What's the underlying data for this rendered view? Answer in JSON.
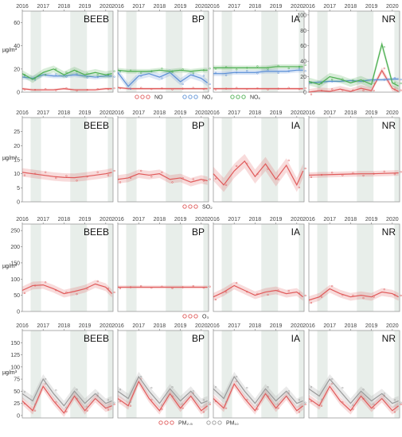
{
  "chart_data": [
    {
      "type": "line",
      "years": [
        "2016",
        "2017",
        "2018",
        "2019",
        "2020"
      ],
      "ylabel": "µg/m³",
      "ylim": [
        0,
        70
      ],
      "yticks": [
        0,
        20,
        40,
        60
      ],
      "panels": [
        {
          "title": "BEEB",
          "ylim": [
            0,
            70
          ],
          "yticks": [
            0,
            20,
            40,
            60
          ]
        },
        {
          "title": "BP",
          "ylim": [
            0,
            70
          ],
          "yticks": [
            0,
            20,
            40,
            60
          ]
        },
        {
          "title": "IA",
          "ylim": [
            0,
            70
          ],
          "yticks": [
            0,
            20,
            40,
            60
          ]
        },
        {
          "title": "NR",
          "ylim": [
            0,
            105
          ],
          "yticks": [
            0,
            20,
            40,
            60,
            80,
            100
          ]
        }
      ],
      "legend": [
        {
          "name": "NO",
          "color": "#e05a5a"
        },
        {
          "name": "NO₂",
          "color": "#5b8fd6"
        },
        {
          "name": "NOₓ",
          "color": "#4caf50"
        }
      ],
      "x": [
        2016.0,
        2016.5,
        2017.0,
        2017.5,
        2018.0,
        2018.5,
        2019.0,
        2019.5,
        2020.0,
        2020.3
      ],
      "series": [
        {
          "panel": "BEEB",
          "name": "NO",
          "values": [
            3,
            2,
            2,
            2,
            3,
            2,
            2,
            2,
            3,
            3
          ],
          "band": 1
        },
        {
          "panel": "BEEB",
          "name": "NO₂",
          "values": [
            13,
            12,
            15,
            14,
            14,
            15,
            14,
            13,
            14,
            14
          ],
          "band": 2
        },
        {
          "panel": "BEEB",
          "name": "NOₓ",
          "values": [
            16,
            11,
            17,
            20,
            15,
            19,
            15,
            17,
            15,
            16
          ],
          "band": 3
        },
        {
          "panel": "BP",
          "name": "NO",
          "values": [
            4,
            3,
            3,
            3,
            3,
            3,
            3,
            3,
            3,
            3
          ],
          "band": 1
        },
        {
          "panel": "BP",
          "name": "NO₂",
          "values": [
            17,
            5,
            14,
            16,
            13,
            17,
            9,
            15,
            12,
            8
          ],
          "band": 3
        },
        {
          "panel": "BP",
          "name": "NOₓ",
          "values": [
            19,
            18,
            18,
            18,
            19,
            18,
            19,
            18,
            19,
            19
          ],
          "band": 2
        },
        {
          "panel": "IA",
          "name": "NO",
          "values": [
            3,
            3,
            3,
            3,
            3,
            3,
            3,
            3,
            3,
            3
          ],
          "band": 1
        },
        {
          "panel": "IA",
          "name": "NO₂",
          "values": [
            16,
            16,
            17,
            17,
            17,
            18,
            18,
            18,
            19,
            19
          ],
          "band": 2
        },
        {
          "panel": "IA",
          "name": "NOₓ",
          "values": [
            21,
            21,
            21,
            21,
            21,
            21,
            22,
            22,
            22,
            22
          ],
          "band": 2
        },
        {
          "panel": "NR",
          "name": "NO",
          "values": [
            0,
            2,
            1,
            4,
            1,
            5,
            2,
            28,
            5,
            1
          ],
          "band": 4
        },
        {
          "panel": "NR",
          "name": "NO₂",
          "values": [
            12,
            13,
            14,
            14,
            15,
            14,
            16,
            16,
            17,
            17
          ],
          "band": 2
        },
        {
          "panel": "NR",
          "name": "NOₓ",
          "values": [
            14,
            10,
            20,
            17,
            12,
            16,
            10,
            62,
            12,
            8
          ],
          "band": 5
        }
      ]
    },
    {
      "type": "line",
      "years": [
        "2016",
        "2017",
        "2018",
        "2019",
        "2020"
      ],
      "ylabel": "µg/m³",
      "ylim": [
        0,
        30
      ],
      "yticks": [
        0,
        5,
        10,
        15,
        20,
        25
      ],
      "panels": [
        {
          "title": "BEEB",
          "ylim": [
            0,
            30
          ],
          "yticks": [
            0,
            5,
            10,
            15,
            20,
            25
          ]
        },
        {
          "title": "BP",
          "ylim": [
            0,
            30
          ],
          "yticks": [
            0,
            5,
            10,
            15,
            20,
            25
          ]
        },
        {
          "title": "IA",
          "ylim": [
            0,
            30
          ],
          "yticks": [
            0,
            5,
            10,
            15,
            20,
            25
          ]
        },
        {
          "title": "NR",
          "ylim": [
            0,
            30
          ],
          "yticks": [
            0,
            5,
            10,
            15,
            20,
            25
          ]
        }
      ],
      "legend": [
        {
          "name": "SO₂",
          "color": "#e05a5a"
        }
      ],
      "x": [
        2016.0,
        2016.5,
        2017.0,
        2017.5,
        2018.0,
        2018.5,
        2019.0,
        2019.5,
        2020.0,
        2020.3
      ],
      "series": [
        {
          "panel": "BEEB",
          "name": "SO₂",
          "values": [
            10.5,
            10,
            9.5,
            9,
            8.7,
            8.6,
            9,
            9.5,
            10,
            10.5
          ],
          "band": 1.5
        },
        {
          "panel": "BP",
          "name": "SO₂",
          "values": [
            8,
            8.5,
            10,
            9.5,
            10,
            8,
            8.5,
            7,
            8,
            7.5
          ],
          "band": 1.5
        },
        {
          "panel": "IA",
          "name": "SO₂",
          "values": [
            10,
            6,
            11,
            14.5,
            9,
            13.5,
            8,
            13,
            6,
            11
          ],
          "band": 2.5
        },
        {
          "panel": "NR",
          "name": "SO₂",
          "values": [
            9.5,
            9.6,
            9.7,
            9.8,
            9.9,
            10,
            10,
            10.1,
            10.2,
            10.3
          ],
          "band": 1
        }
      ]
    },
    {
      "type": "line",
      "years": [
        "2016",
        "2017",
        "2018",
        "2019",
        "2020"
      ],
      "ylabel": "µg/m³",
      "ylim": [
        0,
        270
      ],
      "yticks": [
        0,
        50,
        100,
        150,
        200,
        250
      ],
      "panels": [
        {
          "title": "BEEB",
          "ylim": [
            0,
            270
          ],
          "yticks": [
            0,
            50,
            100,
            150,
            200,
            250
          ]
        },
        {
          "title": "BP",
          "ylim": [
            0,
            270
          ],
          "yticks": [
            0,
            50,
            100,
            150,
            200,
            250
          ]
        },
        {
          "title": "IA",
          "ylim": [
            0,
            270
          ],
          "yticks": [
            0,
            50,
            100,
            150,
            200,
            250
          ]
        },
        {
          "title": "NR",
          "ylim": [
            0,
            270
          ],
          "yticks": [
            0,
            50,
            100,
            150,
            200,
            250
          ]
        }
      ],
      "legend": [
        {
          "name": "O₃",
          "color": "#e05a5a"
        }
      ],
      "x": [
        2016.0,
        2016.5,
        2017.0,
        2017.5,
        2018.0,
        2018.5,
        2019.0,
        2019.5,
        2020.0,
        2020.3
      ],
      "series": [
        {
          "panel": "BEEB",
          "name": "O₃",
          "values": [
            65,
            80,
            82,
            70,
            55,
            62,
            70,
            85,
            75,
            55
          ],
          "band": 12
        },
        {
          "panel": "BP",
          "name": "O₃",
          "values": [
            75,
            75,
            75,
            75,
            75,
            75,
            75,
            75,
            75,
            75
          ],
          "band": 5
        },
        {
          "panel": "IA",
          "name": "O₃",
          "values": [
            45,
            60,
            80,
            65,
            50,
            60,
            65,
            55,
            60,
            45
          ],
          "band": 12
        },
        {
          "panel": "NR",
          "name": "O₃",
          "values": [
            35,
            45,
            70,
            55,
            45,
            50,
            45,
            60,
            55,
            45
          ],
          "band": 12
        }
      ]
    },
    {
      "type": "line",
      "years": [
        "2016",
        "2017",
        "2018",
        "2019",
        "2020"
      ],
      "ylabel": "µg/m³",
      "ylim": [
        -5,
        175
      ],
      "yticks": [
        0,
        25,
        50,
        75,
        100,
        125,
        150
      ],
      "panels": [
        {
          "title": "BEEB",
          "ylim": [
            -5,
            175
          ],
          "yticks": [
            0,
            25,
            50,
            75,
            100,
            125,
            150
          ]
        },
        {
          "title": "BP",
          "ylim": [
            -5,
            175
          ],
          "yticks": [
            0,
            25,
            50,
            75,
            100,
            125,
            150
          ]
        },
        {
          "title": "IA",
          "ylim": [
            -5,
            175
          ],
          "yticks": [
            0,
            25,
            50,
            75,
            100,
            125,
            150
          ]
        },
        {
          "title": "NR",
          "ylim": [
            -5,
            175
          ],
          "yticks": [
            0,
            25,
            50,
            75,
            100,
            125,
            150
          ]
        }
      ],
      "legend": [
        {
          "name": "PM₂.₅",
          "color": "#e05a5a"
        },
        {
          "name": "PM₁₀",
          "color": "#9a9a9a"
        }
      ],
      "x": [
        2016.0,
        2016.5,
        2017.0,
        2017.5,
        2018.0,
        2018.5,
        2019.0,
        2019.5,
        2020.0,
        2020.3
      ],
      "series": [
        {
          "panel": "BEEB",
          "name": "PM₂.₅",
          "values": [
            30,
            10,
            60,
            30,
            5,
            40,
            10,
            35,
            15,
            20
          ],
          "band": 8
        },
        {
          "panel": "BEEB",
          "name": "PM₁₀",
          "values": [
            45,
            30,
            75,
            45,
            20,
            50,
            25,
            45,
            25,
            30
          ],
          "band": 10
        },
        {
          "panel": "BP",
          "name": "PM₂.₅",
          "values": [
            35,
            20,
            70,
            35,
            10,
            45,
            15,
            40,
            10,
            20
          ],
          "band": 8
        },
        {
          "panel": "BP",
          "name": "PM₁₀",
          "values": [
            50,
            35,
            80,
            50,
            25,
            55,
            30,
            50,
            25,
            30
          ],
          "band": 10
        },
        {
          "panel": "IA",
          "name": "PM₂.₅",
          "values": [
            35,
            15,
            65,
            35,
            10,
            45,
            15,
            40,
            10,
            20
          ],
          "band": 8
        },
        {
          "panel": "IA",
          "name": "PM₁₀",
          "values": [
            55,
            35,
            80,
            50,
            25,
            55,
            30,
            50,
            25,
            30
          ],
          "band": 10
        },
        {
          "panel": "NR",
          "name": "PM₂.₅",
          "values": [
            35,
            20,
            60,
            30,
            10,
            40,
            15,
            35,
            10,
            20
          ],
          "band": 8
        },
        {
          "panel": "NR",
          "name": "PM₁₀",
          "values": [
            55,
            40,
            75,
            50,
            25,
            50,
            30,
            45,
            25,
            30
          ],
          "band": 10
        }
      ]
    }
  ]
}
